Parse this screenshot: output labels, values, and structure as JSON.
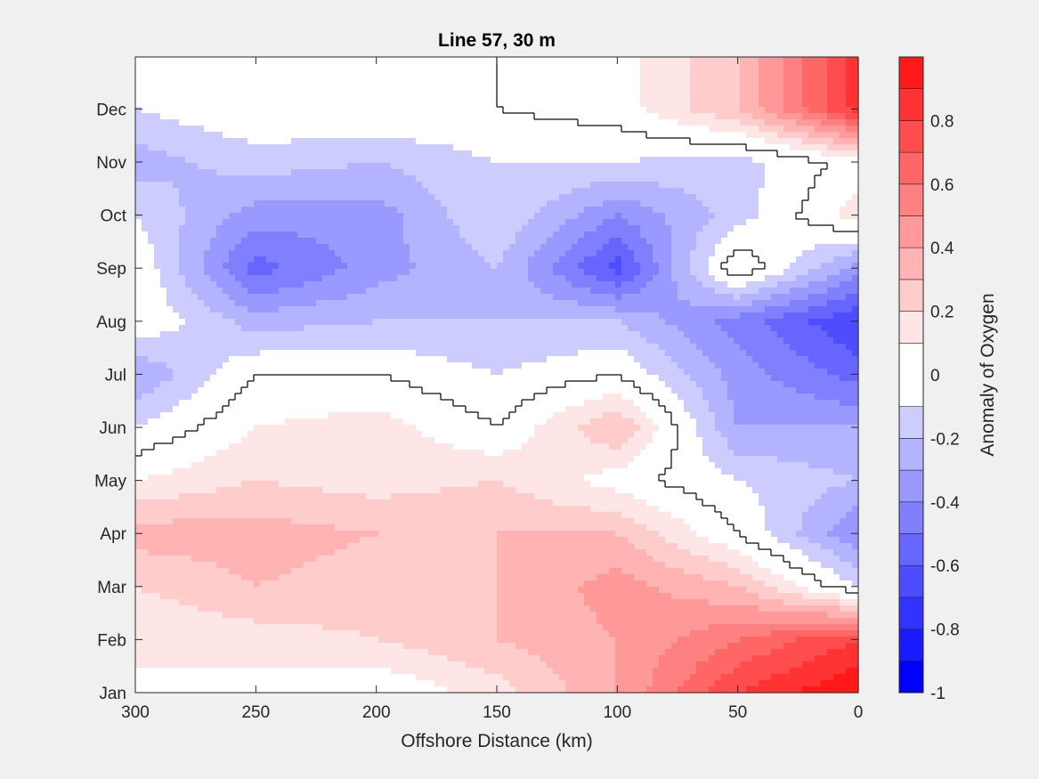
{
  "chart_data": {
    "type": "heatmap",
    "title": "Line 57, 30 m",
    "xlabel": "Offshore Distance (km)",
    "ylabel": "",
    "colorbar_label": "Anomaly of Oxygen",
    "xlim": [
      300,
      0
    ],
    "x_reversed": true,
    "x_ticks": [
      300,
      250,
      200,
      150,
      100,
      50,
      0
    ],
    "x_tick_labels": [
      "300",
      "250",
      "200",
      "150",
      "100",
      "50",
      "0"
    ],
    "y_categories": [
      "Jan",
      "Feb",
      "Mar",
      "Apr",
      "May",
      "Jun",
      "Jul",
      "Aug",
      "Sep",
      "Oct",
      "Nov",
      "Dec"
    ],
    "clim": [
      -1,
      1
    ],
    "colorbar_ticks": [
      -1,
      -0.8,
      -0.6,
      -0.4,
      -0.2,
      0,
      0.2,
      0.4,
      0.6,
      0.8
    ],
    "colorbar_tick_labels": [
      "-1",
      "-0.8",
      "-0.6",
      "-0.4",
      "-0.2",
      "0",
      "0.2",
      "0.4",
      "0.6",
      "0.8"
    ],
    "contour_levels": [
      -1,
      -0.9,
      -0.8,
      -0.7,
      -0.6,
      -0.5,
      -0.4,
      -0.3,
      -0.2,
      -0.1,
      0.1,
      0.2,
      0.3,
      0.4,
      0.5,
      0.6,
      0.7,
      0.8,
      0.9,
      1.0
    ],
    "zero_contour_line": true,
    "colormap": {
      "negative": "#0000ff",
      "zero": "#ffffff",
      "positive": "#ff0000"
    },
    "x_grid": [
      300,
      250,
      200,
      150,
      100,
      50,
      0
    ],
    "z": [
      [
        0.1,
        0.05,
        0.0,
        0.15,
        0.4,
        0.8,
        1.0
      ],
      [
        0.1,
        0.15,
        0.2,
        0.3,
        0.4,
        0.6,
        0.8
      ],
      [
        0.2,
        0.3,
        0.25,
        0.3,
        0.45,
        0.3,
        -0.1
      ],
      [
        0.35,
        0.35,
        0.3,
        0.3,
        0.3,
        0.0,
        -0.4
      ],
      [
        0.1,
        0.2,
        0.15,
        0.2,
        0.05,
        -0.1,
        -0.2
      ],
      [
        -0.1,
        0.1,
        0.15,
        0.0,
        0.3,
        -0.3,
        -0.3
      ],
      [
        -0.3,
        0.0,
        0.0,
        -0.1,
        0.0,
        -0.35,
        -0.55
      ],
      [
        0.0,
        -0.25,
        -0.2,
        -0.2,
        -0.2,
        -0.45,
        -0.7
      ],
      [
        0.0,
        -0.55,
        -0.35,
        -0.2,
        -0.65,
        0.1,
        -0.35
      ],
      [
        -0.1,
        -0.35,
        -0.35,
        -0.1,
        -0.4,
        -0.15,
        0.15
      ],
      [
        -0.25,
        -0.15,
        -0.2,
        -0.1,
        -0.1,
        -0.15,
        0.05
      ],
      [
        -0.1,
        0.0,
        0.0,
        0.0,
        0.05,
        0.3,
        0.85
      ]
    ]
  }
}
